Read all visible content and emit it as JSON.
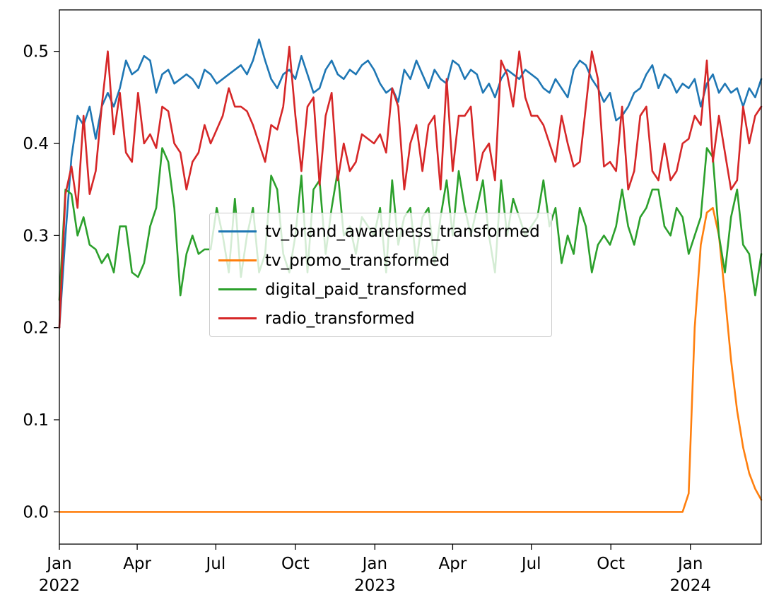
{
  "figure": {
    "background": "#ffffff",
    "axes_edge_color": "#000000"
  },
  "legend": {
    "position": "upper-left-of-center",
    "frame_color": "#cccccc",
    "background": "rgba(255,255,255,0.8)"
  },
  "chart_data": {
    "type": "line",
    "title": "",
    "xlabel": "",
    "ylabel": "",
    "grid": false,
    "x_unit": "weekly points from Jan 2022 to late Mar 2024",
    "xlim": [
      0,
      116
    ],
    "ylim": [
      -0.035,
      0.545
    ],
    "y_ticks": [
      {
        "value": 0.0,
        "label": "0.0"
      },
      {
        "value": 0.1,
        "label": "0.1"
      },
      {
        "value": 0.2,
        "label": "0.2"
      },
      {
        "value": 0.3,
        "label": "0.3"
      },
      {
        "value": 0.4,
        "label": "0.4"
      },
      {
        "value": 0.5,
        "label": "0.5"
      }
    ],
    "x_ticks": [
      {
        "pos": 0,
        "label": "Jan",
        "year": "2022"
      },
      {
        "pos": 12.86,
        "label": "Apr"
      },
      {
        "pos": 25.86,
        "label": "Jul"
      },
      {
        "pos": 39.0,
        "label": "Oct"
      },
      {
        "pos": 52.14,
        "label": "Jan",
        "year": "2023"
      },
      {
        "pos": 65.0,
        "label": "Apr"
      },
      {
        "pos": 78.0,
        "label": "Jul"
      },
      {
        "pos": 91.14,
        "label": "Oct"
      },
      {
        "pos": 104.29,
        "label": "Jan",
        "year": "2024"
      }
    ],
    "series": [
      {
        "name": "tv_brand_awareness_transformed",
        "color": "#1f77b4",
        "values": [
          0.2,
          0.3,
          0.385,
          0.43,
          0.42,
          0.44,
          0.405,
          0.44,
          0.455,
          0.44,
          0.46,
          0.49,
          0.475,
          0.48,
          0.495,
          0.49,
          0.455,
          0.475,
          0.48,
          0.465,
          0.47,
          0.475,
          0.47,
          0.46,
          0.48,
          0.475,
          0.465,
          0.47,
          0.475,
          0.48,
          0.485,
          0.475,
          0.49,
          0.513,
          0.49,
          0.47,
          0.46,
          0.475,
          0.48,
          0.47,
          0.495,
          0.475,
          0.455,
          0.46,
          0.48,
          0.49,
          0.475,
          0.47,
          0.48,
          0.475,
          0.485,
          0.49,
          0.48,
          0.465,
          0.455,
          0.46,
          0.445,
          0.48,
          0.47,
          0.49,
          0.475,
          0.46,
          0.48,
          0.47,
          0.465,
          0.49,
          0.485,
          0.47,
          0.48,
          0.475,
          0.455,
          0.465,
          0.45,
          0.47,
          0.48,
          0.475,
          0.47,
          0.48,
          0.475,
          0.47,
          0.46,
          0.455,
          0.47,
          0.46,
          0.45,
          0.48,
          0.49,
          0.485,
          0.47,
          0.46,
          0.445,
          0.455,
          0.425,
          0.43,
          0.44,
          0.455,
          0.46,
          0.475,
          0.485,
          0.46,
          0.475,
          0.47,
          0.455,
          0.465,
          0.46,
          0.47,
          0.44,
          0.465,
          0.475,
          0.455,
          0.465,
          0.455,
          0.46,
          0.44,
          0.46,
          0.45,
          0.47
        ]
      },
      {
        "name": "tv_promo_transformed",
        "color": "#ff7f0e",
        "values": [
          0,
          0,
          0,
          0,
          0,
          0,
          0,
          0,
          0,
          0,
          0,
          0,
          0,
          0,
          0,
          0,
          0,
          0,
          0,
          0,
          0,
          0,
          0,
          0,
          0,
          0,
          0,
          0,
          0,
          0,
          0,
          0,
          0,
          0,
          0,
          0,
          0,
          0,
          0,
          0,
          0,
          0,
          0,
          0,
          0,
          0,
          0,
          0,
          0,
          0,
          0,
          0,
          0,
          0,
          0,
          0,
          0,
          0,
          0,
          0,
          0,
          0,
          0,
          0,
          0,
          0,
          0,
          0,
          0,
          0,
          0,
          0,
          0,
          0,
          0,
          0,
          0,
          0,
          0,
          0,
          0,
          0,
          0,
          0,
          0,
          0,
          0,
          0,
          0,
          0,
          0,
          0,
          0,
          0,
          0,
          0,
          0,
          0,
          0,
          0,
          0,
          0,
          0,
          0,
          0.02,
          0.2,
          0.29,
          0.325,
          0.33,
          0.3,
          0.235,
          0.165,
          0.11,
          0.07,
          0.042,
          0.025,
          0.013
        ]
      },
      {
        "name": "digital_paid_transformed",
        "color": "#2ca02c",
        "values": [
          0.23,
          0.35,
          0.345,
          0.3,
          0.32,
          0.29,
          0.285,
          0.27,
          0.28,
          0.26,
          0.31,
          0.31,
          0.26,
          0.255,
          0.27,
          0.31,
          0.33,
          0.395,
          0.38,
          0.33,
          0.235,
          0.28,
          0.3,
          0.28,
          0.285,
          0.285,
          0.33,
          0.3,
          0.26,
          0.34,
          0.255,
          0.3,
          0.33,
          0.26,
          0.28,
          0.365,
          0.35,
          0.28,
          0.26,
          0.3,
          0.365,
          0.26,
          0.35,
          0.36,
          0.28,
          0.33,
          0.37,
          0.3,
          0.31,
          0.28,
          0.32,
          0.31,
          0.3,
          0.33,
          0.26,
          0.36,
          0.29,
          0.32,
          0.33,
          0.27,
          0.32,
          0.33,
          0.27,
          0.32,
          0.36,
          0.3,
          0.37,
          0.33,
          0.3,
          0.33,
          0.36,
          0.3,
          0.26,
          0.36,
          0.3,
          0.34,
          0.32,
          0.3,
          0.31,
          0.32,
          0.36,
          0.31,
          0.33,
          0.27,
          0.3,
          0.28,
          0.33,
          0.31,
          0.26,
          0.29,
          0.3,
          0.29,
          0.31,
          0.35,
          0.31,
          0.29,
          0.32,
          0.33,
          0.35,
          0.35,
          0.31,
          0.3,
          0.33,
          0.32,
          0.28,
          0.3,
          0.32,
          0.395,
          0.385,
          0.3,
          0.26,
          0.32,
          0.35,
          0.29,
          0.28,
          0.235,
          0.28
        ]
      },
      {
        "name": "radio_transformed",
        "color": "#d62728",
        "values": [
          0.2,
          0.345,
          0.375,
          0.33,
          0.43,
          0.345,
          0.37,
          0.44,
          0.5,
          0.41,
          0.455,
          0.39,
          0.38,
          0.455,
          0.4,
          0.41,
          0.395,
          0.44,
          0.435,
          0.4,
          0.39,
          0.35,
          0.38,
          0.39,
          0.42,
          0.4,
          0.415,
          0.43,
          0.46,
          0.44,
          0.44,
          0.435,
          0.42,
          0.4,
          0.38,
          0.42,
          0.415,
          0.44,
          0.505,
          0.43,
          0.37,
          0.44,
          0.45,
          0.355,
          0.43,
          0.455,
          0.36,
          0.4,
          0.37,
          0.38,
          0.41,
          0.405,
          0.4,
          0.41,
          0.39,
          0.46,
          0.44,
          0.35,
          0.4,
          0.42,
          0.37,
          0.42,
          0.43,
          0.35,
          0.47,
          0.37,
          0.43,
          0.43,
          0.44,
          0.36,
          0.39,
          0.4,
          0.36,
          0.49,
          0.475,
          0.44,
          0.5,
          0.45,
          0.43,
          0.43,
          0.42,
          0.4,
          0.38,
          0.43,
          0.4,
          0.375,
          0.38,
          0.44,
          0.5,
          0.47,
          0.375,
          0.38,
          0.37,
          0.44,
          0.35,
          0.37,
          0.43,
          0.44,
          0.37,
          0.36,
          0.4,
          0.36,
          0.37,
          0.4,
          0.405,
          0.43,
          0.42,
          0.49,
          0.38,
          0.43,
          0.39,
          0.35,
          0.36,
          0.44,
          0.4,
          0.43,
          0.44
        ]
      }
    ]
  }
}
